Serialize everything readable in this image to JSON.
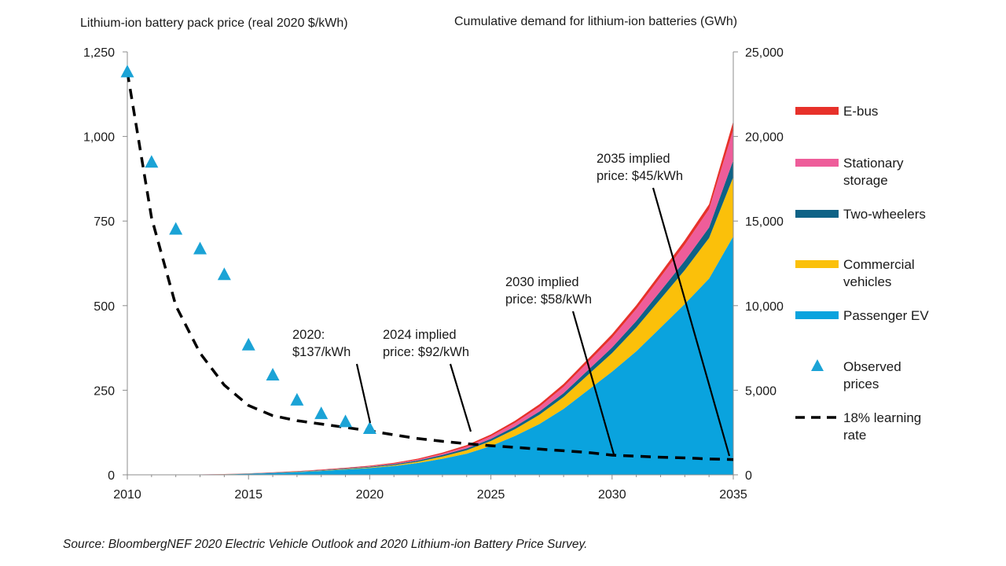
{
  "chart_data": {
    "type": "area",
    "source": "Source: BloombergNEF 2020 Electric Vehicle Outlook and 2020 Lithium-ion Battery Price Survey.",
    "left_axis": {
      "title": "Lithium-ion battery pack price (real 2020 $/kWh)",
      "range": [
        0,
        1250
      ],
      "ticks": [
        0,
        250,
        500,
        750,
        1000,
        1250
      ],
      "tick_labels": [
        "0",
        "250",
        "500",
        "750",
        "1,000",
        "1,250"
      ]
    },
    "right_axis": {
      "title": "Cumulative demand for lithium-ion batteries (GWh)",
      "range": [
        0,
        25000
      ],
      "ticks": [
        0,
        5000,
        10000,
        15000,
        20000,
        25000
      ],
      "tick_labels": [
        "0",
        "5,000",
        "10,000",
        "15,000",
        "20,000",
        "25,000"
      ]
    },
    "x_axis": {
      "range": [
        2010,
        2035
      ],
      "ticks": [
        2010,
        2015,
        2020,
        2025,
        2030,
        2035
      ],
      "tick_labels": [
        "2010",
        "2015",
        "2020",
        "2025",
        "2030",
        "2035"
      ]
    },
    "years": [
      2010,
      2011,
      2012,
      2013,
      2014,
      2015,
      2016,
      2017,
      2018,
      2019,
      2020,
      2021,
      2022,
      2023,
      2024,
      2025,
      2026,
      2027,
      2028,
      2029,
      2030,
      2031,
      2032,
      2033,
      2034,
      2035
    ],
    "stacked_series": [
      {
        "name": "Passenger EV",
        "color": "#0AA3DE",
        "values": [
          0,
          2,
          5,
          15,
          30,
          60,
          100,
          160,
          230,
          310,
          400,
          520,
          700,
          950,
          1250,
          1700,
          2300,
          3000,
          3900,
          5000,
          6100,
          7300,
          8700,
          10100,
          11600,
          14100
        ]
      },
      {
        "name": "Commercial vehicles",
        "color": "#FBC00A",
        "values": [
          0,
          0,
          0,
          1,
          2,
          4,
          8,
          12,
          18,
          26,
          35,
          50,
          80,
          130,
          200,
          300,
          400,
          550,
          700,
          900,
          1100,
          1400,
          1700,
          2000,
          2400,
          3500
        ]
      },
      {
        "name": "Two-wheelers",
        "color": "#0E6286",
        "values": [
          0,
          1,
          2,
          4,
          7,
          10,
          15,
          20,
          28,
          36,
          45,
          55,
          70,
          90,
          110,
          130,
          160,
          190,
          230,
          280,
          330,
          400,
          470,
          550,
          620,
          1000
        ]
      },
      {
        "name": "Stationary storage",
        "color": "#EE5D9A",
        "values": [
          0,
          0,
          0,
          1,
          2,
          3,
          5,
          8,
          12,
          17,
          25,
          35,
          50,
          70,
          100,
          150,
          210,
          280,
          370,
          470,
          580,
          700,
          820,
          950,
          1080,
          1800
        ]
      },
      {
        "name": "E-bus",
        "color": "#E7312A",
        "values": [
          0,
          0,
          1,
          3,
          6,
          10,
          15,
          20,
          25,
          30,
          35,
          45,
          55,
          70,
          90,
          110,
          130,
          150,
          170,
          190,
          210,
          230,
          250,
          270,
          290,
          500
        ]
      }
    ],
    "observed_prices": {
      "name": "Observed prices",
      "color": "#1BA3D6",
      "years": [
        2010,
        2011,
        2012,
        2013,
        2014,
        2015,
        2016,
        2017,
        2018,
        2019,
        2020
      ],
      "values": [
        1191,
        924,
        726,
        668,
        592,
        384,
        295,
        221,
        181,
        157,
        137
      ]
    },
    "learning_curve": {
      "name": "18% learning rate",
      "color": "#000000",
      "years": [
        2010,
        2011,
        2012,
        2013,
        2014,
        2015,
        2016,
        2017,
        2018,
        2019,
        2020,
        2021,
        2022,
        2023,
        2024,
        2025,
        2026,
        2027,
        2028,
        2029,
        2030,
        2031,
        2032,
        2033,
        2034,
        2035
      ],
      "values": [
        1191,
        760,
        500,
        360,
        265,
        205,
        175,
        160,
        150,
        140,
        130,
        118,
        107,
        99,
        92,
        86,
        81,
        76,
        71,
        66,
        58,
        55,
        52,
        50,
        47,
        45
      ]
    },
    "legend": [
      {
        "label": "E-bus",
        "kind": "area",
        "color": "#E7312A"
      },
      {
        "label": "Stationary storage",
        "kind": "area",
        "color": "#EE5D9A"
      },
      {
        "label": "Two-wheelers",
        "kind": "area",
        "color": "#0E6286"
      },
      {
        "label": "Commercial vehicles",
        "kind": "area",
        "color": "#FBC00A"
      },
      {
        "label": "Passenger EV",
        "kind": "area",
        "color": "#0AA3DE"
      },
      {
        "label": "Observed prices",
        "kind": "triangle",
        "color": "#1BA3D6"
      },
      {
        "label": "18% learning rate",
        "kind": "dash",
        "color": "#000000"
      }
    ],
    "annotations": [
      {
        "text": "2020: $137/kWh",
        "year": 2020,
        "price": 137
      },
      {
        "text": "2024 implied price: $92/kWh",
        "year": 2024,
        "price": 92
      },
      {
        "text": "2030 implied price: $58/kWh",
        "year": 2030,
        "price": 58
      },
      {
        "text": "2035 implied price: $45/kWh",
        "year": 2035,
        "price": 45
      }
    ]
  }
}
